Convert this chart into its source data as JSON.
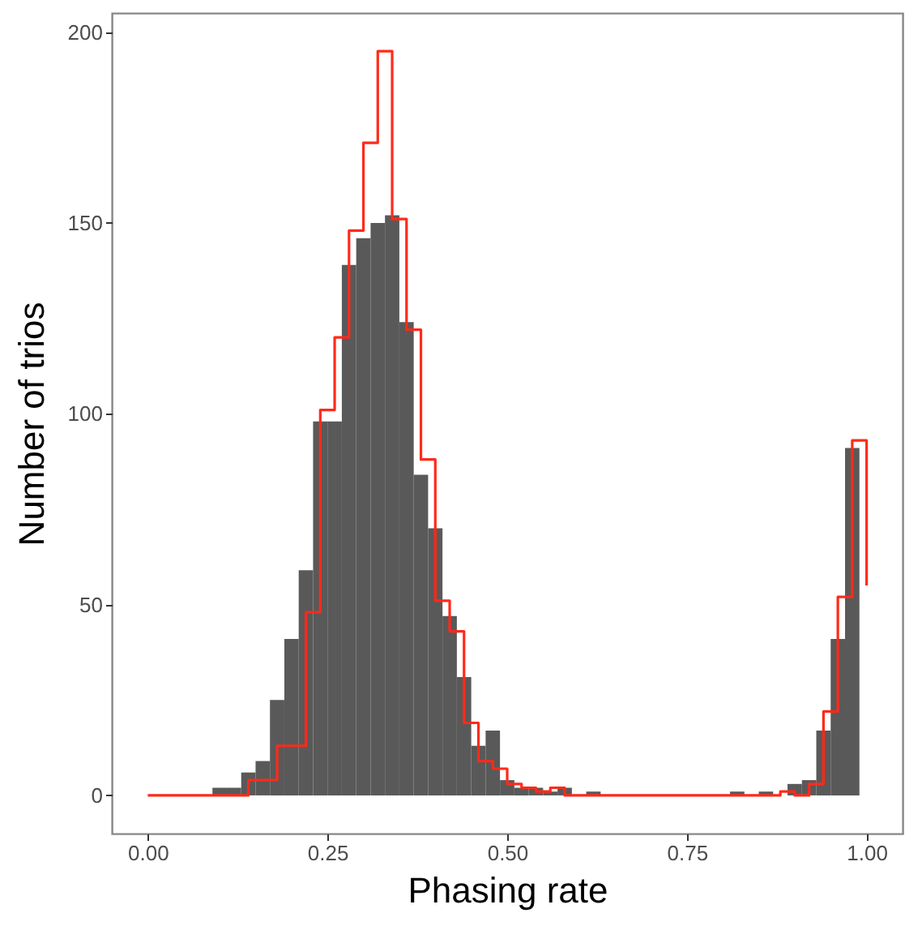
{
  "chart_data": {
    "type": "histogram",
    "xlabel": "Phasing rate",
    "ylabel": "Number of trios",
    "xlim": [
      -0.05,
      1.05
    ],
    "ylim": [
      -10,
      205
    ],
    "xticks": [
      {
        "value": 0,
        "label": "0.00"
      },
      {
        "value": 0.25,
        "label": "0.25"
      },
      {
        "value": 0.5,
        "label": "0.50"
      },
      {
        "value": 0.75,
        "label": "0.75"
      },
      {
        "value": 1,
        "label": "1.00"
      }
    ],
    "yticks": [
      0,
      50,
      100,
      150,
      200
    ],
    "series": [
      {
        "type": "histogram",
        "color": "#595959",
        "bins": [
          0.09,
          0.11,
          0.13,
          0.15,
          0.17,
          0.19,
          0.21,
          0.23,
          0.25,
          0.27,
          0.29,
          0.31,
          0.33,
          0.35,
          0.37,
          0.39,
          0.41,
          0.43,
          0.45,
          0.47,
          0.49,
          0.51,
          0.53,
          0.55,
          0.57,
          0.59,
          0.61,
          0.63,
          0.65,
          0.67,
          0.69,
          0.71,
          0.73,
          0.75,
          0.77,
          0.79,
          0.81,
          0.83,
          0.85,
          0.87,
          0.89,
          0.91,
          0.93,
          0.95,
          0.97,
          0.99
        ],
        "values": [
          2,
          2,
          6,
          9,
          25,
          41,
          59,
          98,
          98,
          139,
          146,
          150,
          152,
          124,
          84,
          70,
          47,
          31,
          13,
          17,
          4,
          2,
          2,
          1,
          2,
          0,
          1,
          0,
          0,
          0,
          0,
          0,
          0,
          0,
          0,
          0,
          1,
          0,
          1,
          0,
          3,
          4,
          17,
          41,
          91
        ]
      },
      {
        "type": "step",
        "color": "#ff2a1a",
        "x": [
          0,
          0.02,
          0.04,
          0.06,
          0.08,
          0.1,
          0.12,
          0.14,
          0.16,
          0.18,
          0.2,
          0.22,
          0.24,
          0.26,
          0.28,
          0.3,
          0.32,
          0.34,
          0.36,
          0.38,
          0.4,
          0.42,
          0.44,
          0.46,
          0.48,
          0.5,
          0.52,
          0.54,
          0.56,
          0.58,
          0.6,
          0.62,
          0.64,
          0.66,
          0.68,
          0.7,
          0.72,
          0.74,
          0.76,
          0.78,
          0.8,
          0.82,
          0.84,
          0.86,
          0.88,
          0.9,
          0.92,
          0.94,
          0.96,
          0.98,
          1
        ],
        "values": [
          0,
          0,
          0,
          0,
          0,
          0,
          0,
          4,
          4,
          13,
          13,
          48,
          101,
          120,
          148,
          171,
          195,
          151,
          122,
          88,
          51,
          43,
          19,
          9,
          7,
          3,
          2,
          1,
          2,
          0,
          0,
          0,
          0,
          0,
          0,
          0,
          0,
          0,
          0,
          0,
          0,
          0,
          0,
          0,
          1,
          0,
          3,
          22,
          52,
          93,
          55
        ]
      }
    ]
  }
}
